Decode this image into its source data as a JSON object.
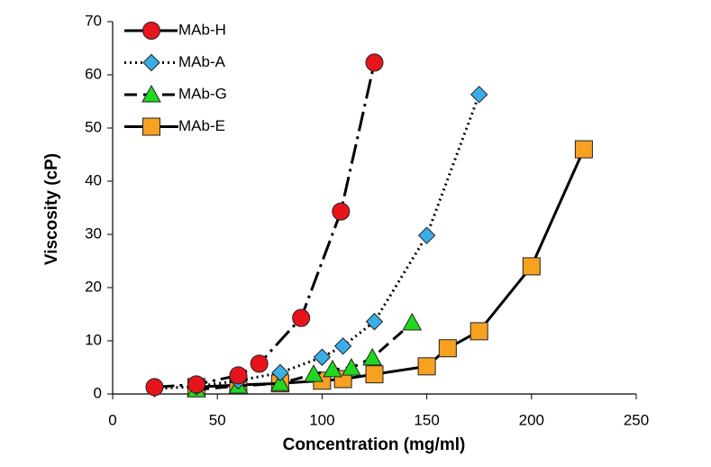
{
  "chart_data": {
    "type": "line",
    "xlabel": "Concentration (mg/ml)",
    "ylabel": "Viscosity (cP)",
    "xlim": [
      0,
      250
    ],
    "xticks": [
      0,
      50,
      100,
      150,
      200,
      250
    ],
    "ylim": [
      0,
      70
    ],
    "yticks": [
      0,
      10,
      20,
      30,
      40,
      50,
      60,
      70
    ],
    "legend": "upper left",
    "series": [
      {
        "name": "MAb-H",
        "color": "#e8141b",
        "marker": "circle",
        "line_style": "dashdot",
        "x": [
          20,
          40,
          60,
          70,
          90,
          109,
          125
        ],
        "values": [
          1.3,
          1.8,
          3.5,
          5.7,
          14.3,
          34.3,
          62.3
        ]
      },
      {
        "name": "MAb-A",
        "color": "#3aaee8",
        "marker": "diamond",
        "line_style": "dotted",
        "x": [
          20,
          40,
          60,
          80,
          100,
          110,
          125,
          150,
          175
        ],
        "values": [
          1.0,
          1.4,
          2.5,
          4.0,
          6.9,
          9.0,
          13.6,
          29.8,
          56.3
        ]
      },
      {
        "name": "MAb-G",
        "color": "#1fd81f",
        "marker": "triangle",
        "line_style": "dashed",
        "x": [
          40,
          60,
          80,
          96,
          105,
          114,
          124,
          143
        ],
        "values": [
          0.8,
          1.5,
          2.0,
          3.7,
          4.6,
          4.9,
          6.8,
          13.4
        ]
      },
      {
        "name": "MAb-E",
        "color": "#f7a121",
        "marker": "square",
        "line_style": "solid",
        "x": [
          40,
          60,
          80,
          100,
          110,
          125,
          150,
          160,
          175,
          200,
          225
        ],
        "values": [
          1.3,
          1.7,
          2.0,
          2.5,
          2.8,
          3.7,
          5.2,
          8.6,
          11.8,
          24.0,
          46.0
        ]
      }
    ]
  }
}
